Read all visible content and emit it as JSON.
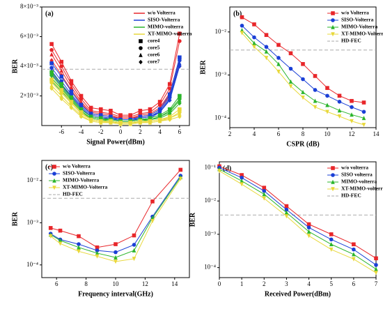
{
  "chart_data": [
    {
      "type": "line",
      "panel": "(a)",
      "xlabel": "Signal Power(dBm)",
      "ylabel": "BER",
      "legend": "upper right",
      "x": [
        -7,
        -6,
        -5,
        -4,
        -3,
        -2,
        -1,
        0,
        1,
        2,
        3,
        4,
        5,
        6
      ],
      "xlim": [
        -8,
        7
      ],
      "xticks": [
        -6,
        -4,
        -2,
        0,
        2,
        4,
        6
      ],
      "ylim": [
        0,
        0.008
      ],
      "log": false,
      "yticks": [
        {
          "value": 0.002,
          "label": "2×10⁻³"
        },
        {
          "value": 0.004,
          "label": "4×10⁻³"
        },
        {
          "value": 0.006,
          "label": "6×10⁻³"
        },
        {
          "value": 0.008,
          "label": "8×10⁻³"
        }
      ],
      "threshold": 0.0038,
      "cores": [
        {
          "name": "core4",
          "marker": "square"
        },
        {
          "name": "core5",
          "marker": "circle"
        },
        {
          "name": "core6",
          "marker": "triangle"
        },
        {
          "name": "core7",
          "marker": "diamond"
        }
      ],
      "series": [
        {
          "name": "w/o Volterra",
          "color": "#e8262a",
          "lines": [
            [
              0.0055,
              0.0043,
              0.003,
              0.002,
              0.0012,
              0.0011,
              0.001,
              0.0007,
              0.0007,
              0.001,
              0.0011,
              0.0016,
              0.0028,
              0.0062
            ],
            [
              0.0051,
              0.004,
              0.0028,
              0.0018,
              0.001,
              0.0009,
              0.0008,
              0.0006,
              0.0006,
              0.0008,
              0.0009,
              0.0014,
              0.0025,
              0.0057
            ],
            [
              0.0048,
              0.0037,
              0.0026,
              0.0016,
              0.0009,
              0.0008,
              0.0007,
              0.0005,
              0.0005,
              0.0007,
              0.0008,
              0.0012,
              0.0022,
              0.0045
            ],
            [
              0.0044,
              0.0034,
              0.0024,
              0.0015,
              0.0008,
              0.0007,
              0.0006,
              0.0005,
              0.0005,
              0.0006,
              0.0007,
              0.0011,
              0.002,
              0.004
            ]
          ]
        },
        {
          "name": "SISO-Volterra",
          "color": "#1a3fd6",
          "lines": [
            [
              0.0042,
              0.0033,
              0.0023,
              0.0014,
              0.0008,
              0.0007,
              0.0006,
              0.0004,
              0.0004,
              0.0006,
              0.0007,
              0.0011,
              0.0021,
              0.0046
            ],
            [
              0.0039,
              0.003,
              0.0021,
              0.0013,
              0.0007,
              0.0006,
              0.0005,
              0.0004,
              0.0004,
              0.0005,
              0.0006,
              0.001,
              0.0019,
              0.0044
            ],
            [
              0.0037,
              0.0028,
              0.002,
              0.0012,
              0.0006,
              0.0005,
              0.0005,
              0.0003,
              0.0003,
              0.0005,
              0.0006,
              0.0009,
              0.0018,
              0.0042
            ],
            [
              0.0035,
              0.0027,
              0.0019,
              0.0011,
              0.0006,
              0.0005,
              0.0004,
              0.0003,
              0.0003,
              0.0004,
              0.0005,
              0.0009,
              0.0017,
              0.004
            ]
          ]
        },
        {
          "name": "MIMO-volterra",
          "color": "#2bb52b",
          "lines": [
            [
              0.0036,
              0.0028,
              0.0019,
              0.0011,
              0.0006,
              0.0005,
              0.0004,
              0.0003,
              0.0003,
              0.0004,
              0.0005,
              0.0007,
              0.0011,
              0.002
            ],
            [
              0.0034,
              0.0026,
              0.0018,
              0.001,
              0.0005,
              0.0004,
              0.0004,
              0.0003,
              0.0003,
              0.0004,
              0.0004,
              0.0006,
              0.001,
              0.0018
            ],
            [
              0.0032,
              0.0025,
              0.0017,
              0.0009,
              0.0005,
              0.0004,
              0.0003,
              0.0002,
              0.0002,
              0.0003,
              0.0004,
              0.0006,
              0.0009,
              0.0017
            ],
            [
              0.003,
              0.0023,
              0.0016,
              0.0009,
              0.0004,
              0.0003,
              0.0003,
              0.0002,
              0.0002,
              0.0003,
              0.0004,
              0.0005,
              0.0008,
              0.0015
            ]
          ]
        },
        {
          "name": "XT-MIMO-volterra",
          "color": "#e8d83a",
          "lines": [
            [
              0.0031,
              0.0024,
              0.0016,
              0.0009,
              0.0004,
              0.0003,
              0.0003,
              0.0002,
              0.0002,
              0.0003,
              0.0003,
              0.0004,
              0.0006,
              0.0011
            ],
            [
              0.0029,
              0.0022,
              0.0015,
              0.0008,
              0.0004,
              0.0003,
              0.0002,
              0.0002,
              0.0002,
              0.0002,
              0.0003,
              0.0004,
              0.0005,
              0.0009
            ],
            [
              0.0027,
              0.002,
              0.0013,
              0.0007,
              0.0003,
              0.0002,
              0.0002,
              0.0001,
              0.0001,
              0.0002,
              0.0002,
              0.0003,
              0.0005,
              0.0008
            ],
            [
              0.0025,
              0.0018,
              0.0012,
              0.0006,
              0.0003,
              0.0002,
              0.0002,
              0.0001,
              0.0001,
              0.0002,
              0.0002,
              0.0003,
              0.0004,
              0.0006
            ]
          ]
        }
      ]
    },
    {
      "type": "line",
      "panel": "(b)",
      "xlabel": "CSPR (dB)",
      "ylabel": "BER",
      "legend": "upper right",
      "x": [
        3,
        4,
        5,
        6,
        7,
        8,
        9,
        10,
        11,
        12,
        13
      ],
      "xlim": [
        2,
        14
      ],
      "xticks": [
        2,
        4,
        6,
        8,
        10,
        12,
        14
      ],
      "ylim": [
        6e-05,
        0.038
      ],
      "log": true,
      "yticks": [
        {
          "value": 0.0001,
          "label": "10⁻⁴"
        },
        {
          "value": 0.001,
          "label": "10⁻³"
        },
        {
          "value": 0.01,
          "label": "10⁻²"
        }
      ],
      "threshold": 0.0038,
      "threshold_label": "HD-FEC",
      "series": [
        {
          "name": "w/o Volterra",
          "color": "#e8262a",
          "marker": "square",
          "values": [
            0.022,
            0.015,
            0.0085,
            0.005,
            0.0032,
            0.0018,
            0.00095,
            0.0005,
            0.00033,
            0.00025,
            0.00023
          ]
        },
        {
          "name": "SISO-Volterra",
          "color": "#1a3fd6",
          "marker": "circle",
          "values": [
            0.014,
            0.0075,
            0.0045,
            0.0025,
            0.0014,
            0.0008,
            0.00045,
            0.00033,
            0.00024,
            0.00018,
            0.00014
          ]
        },
        {
          "name": "MIMO-Volterra",
          "color": "#2bb52b",
          "marker": "triangle",
          "values": [
            0.011,
            0.0055,
            0.0035,
            0.0018,
            0.0007,
            0.0004,
            0.00025,
            0.0002,
            0.00015,
            0.00012,
            0.0001
          ]
        },
        {
          "name": "XT-MIMO-Volterra",
          "color": "#e8d83a",
          "marker": "down",
          "values": [
            0.0095,
            0.0045,
            0.0025,
            0.0012,
            0.00055,
            0.0003,
            0.00018,
            0.00014,
            0.00011,
            8.5e-05,
            7e-05
          ]
        }
      ]
    },
    {
      "type": "line",
      "panel": "(c)",
      "xlabel": "Frequency interval(GHz)",
      "ylabel": "BER",
      "legend": "upper left",
      "x": [
        5.6,
        6.25,
        7.5,
        8.75,
        10,
        11.25,
        12.5,
        14.4
      ],
      "xlim": [
        5,
        15
      ],
      "xticks": [
        6,
        8,
        10,
        12,
        14
      ],
      "ylim": [
        5e-05,
        0.03
      ],
      "log": true,
      "yticks": [
        {
          "value": 0.0001,
          "label": "10⁻⁴"
        },
        {
          "value": 0.001,
          "label": "10⁻³"
        },
        {
          "value": 0.01,
          "label": "10⁻²"
        }
      ],
      "threshold": 0.0038,
      "threshold_label": "HD-FEC",
      "series": [
        {
          "name": "w/o Volterra",
          "color": "#e8262a",
          "marker": "square",
          "values": [
            0.00075,
            0.00065,
            0.00048,
            0.00026,
            0.00031,
            0.0005,
            0.0032,
            0.018
          ]
        },
        {
          "name": "SISO-Volterra",
          "color": "#1a3fd6",
          "marker": "circle",
          "values": [
            0.00055,
            0.0004,
            0.00031,
            0.00022,
            0.0002,
            0.0003,
            0.0014,
            0.013
          ]
        },
        {
          "name": "MIMO-Volterra",
          "color": "#2bb52b",
          "marker": "triangle",
          "values": [
            0.00052,
            0.00038,
            0.00026,
            0.00019,
            0.00015,
            0.00022,
            0.0013,
            0.012
          ]
        },
        {
          "name": "XT-MIMO-Volterra",
          "color": "#e8d83a",
          "marker": "down",
          "values": [
            0.00048,
            0.00032,
            0.00021,
            0.00016,
            0.00012,
            0.00014,
            0.0011,
            0.011
          ]
        }
      ]
    },
    {
      "type": "line",
      "panel": "(d)",
      "xlabel": "Received Power(dBm)",
      "ylabel": "BER",
      "legend": "upper right",
      "x": [
        0,
        1,
        2,
        3,
        4,
        5,
        6,
        7
      ],
      "xlim": [
        0,
        7
      ],
      "xticks": [
        0,
        1,
        2,
        3,
        4,
        5,
        6,
        7
      ],
      "ylim": [
        5e-05,
        0.15
      ],
      "log": true,
      "yticks": [
        {
          "value": 0.0001,
          "label": "10⁻⁴"
        },
        {
          "value": 0.001,
          "label": "10⁻³"
        },
        {
          "value": 0.01,
          "label": "10⁻²"
        },
        {
          "value": 0.1,
          "label": "10⁻¹"
        }
      ],
      "threshold": 0.0038,
      "threshold_label": "HD-FEC",
      "series": [
        {
          "name": "w/o volterra",
          "color": "#e8262a",
          "marker": "square",
          "values": [
            0.11,
            0.06,
            0.025,
            0.007,
            0.002,
            0.001,
            0.0005,
            0.00019
          ]
        },
        {
          "name": "SISO volterra",
          "color": "#1a3fd6",
          "marker": "circle",
          "values": [
            0.1,
            0.05,
            0.02,
            0.0055,
            0.0016,
            0.0007,
            0.00035,
            0.00012
          ]
        },
        {
          "name": "MIMO-volterra",
          "color": "#2bb52b",
          "marker": "triangle",
          "values": [
            0.09,
            0.04,
            0.016,
            0.0045,
            0.0012,
            0.0005,
            0.00025,
            9e-05
          ]
        },
        {
          "name": "XT-MIMO-volterra",
          "color": "#e8d83a",
          "marker": "down",
          "values": [
            0.08,
            0.032,
            0.012,
            0.0035,
            0.0009,
            0.00035,
            0.00018,
            7e-05
          ]
        }
      ]
    }
  ]
}
